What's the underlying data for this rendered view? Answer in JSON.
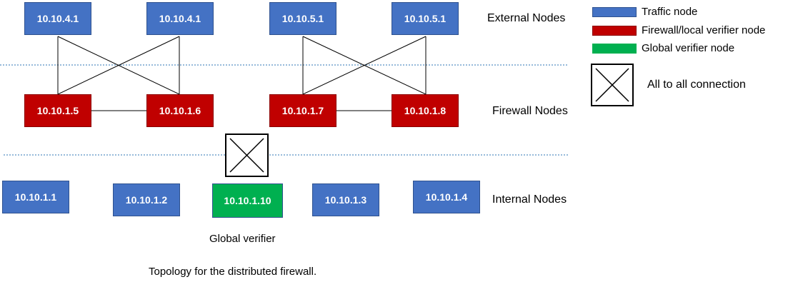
{
  "nodes": {
    "ext_1": "10.10.4.1",
    "ext_2": "10.10.4.1",
    "ext_3": "10.10.5.1",
    "ext_4": "10.10.5.1",
    "fw_1": "10.10.1.5",
    "fw_2": "10.10.1.6",
    "fw_3": "10.10.1.7",
    "fw_4": "10.10.1.8",
    "int_1": "10.10.1.1",
    "int_2": "10.10.1.2",
    "global": "10.10.1.10",
    "int_3": "10.10.1.3",
    "int_4": "10.10.1.4"
  },
  "tiers": {
    "external": "External Nodes",
    "firewall": "Firewall Nodes",
    "internal": "Internal Nodes"
  },
  "legend": {
    "traffic": "Traffic node",
    "firewall": "Firewall/local verifier node",
    "global": "Global verifier node",
    "all_to_all": "All to all connection"
  },
  "captions": {
    "global_verifier": "Global verifier",
    "figure": "Topology for the distributed firewall."
  },
  "colors": {
    "traffic": "#4472c4",
    "firewall": "#c00000",
    "global": "#00b050",
    "separator": "#2e75b6"
  }
}
